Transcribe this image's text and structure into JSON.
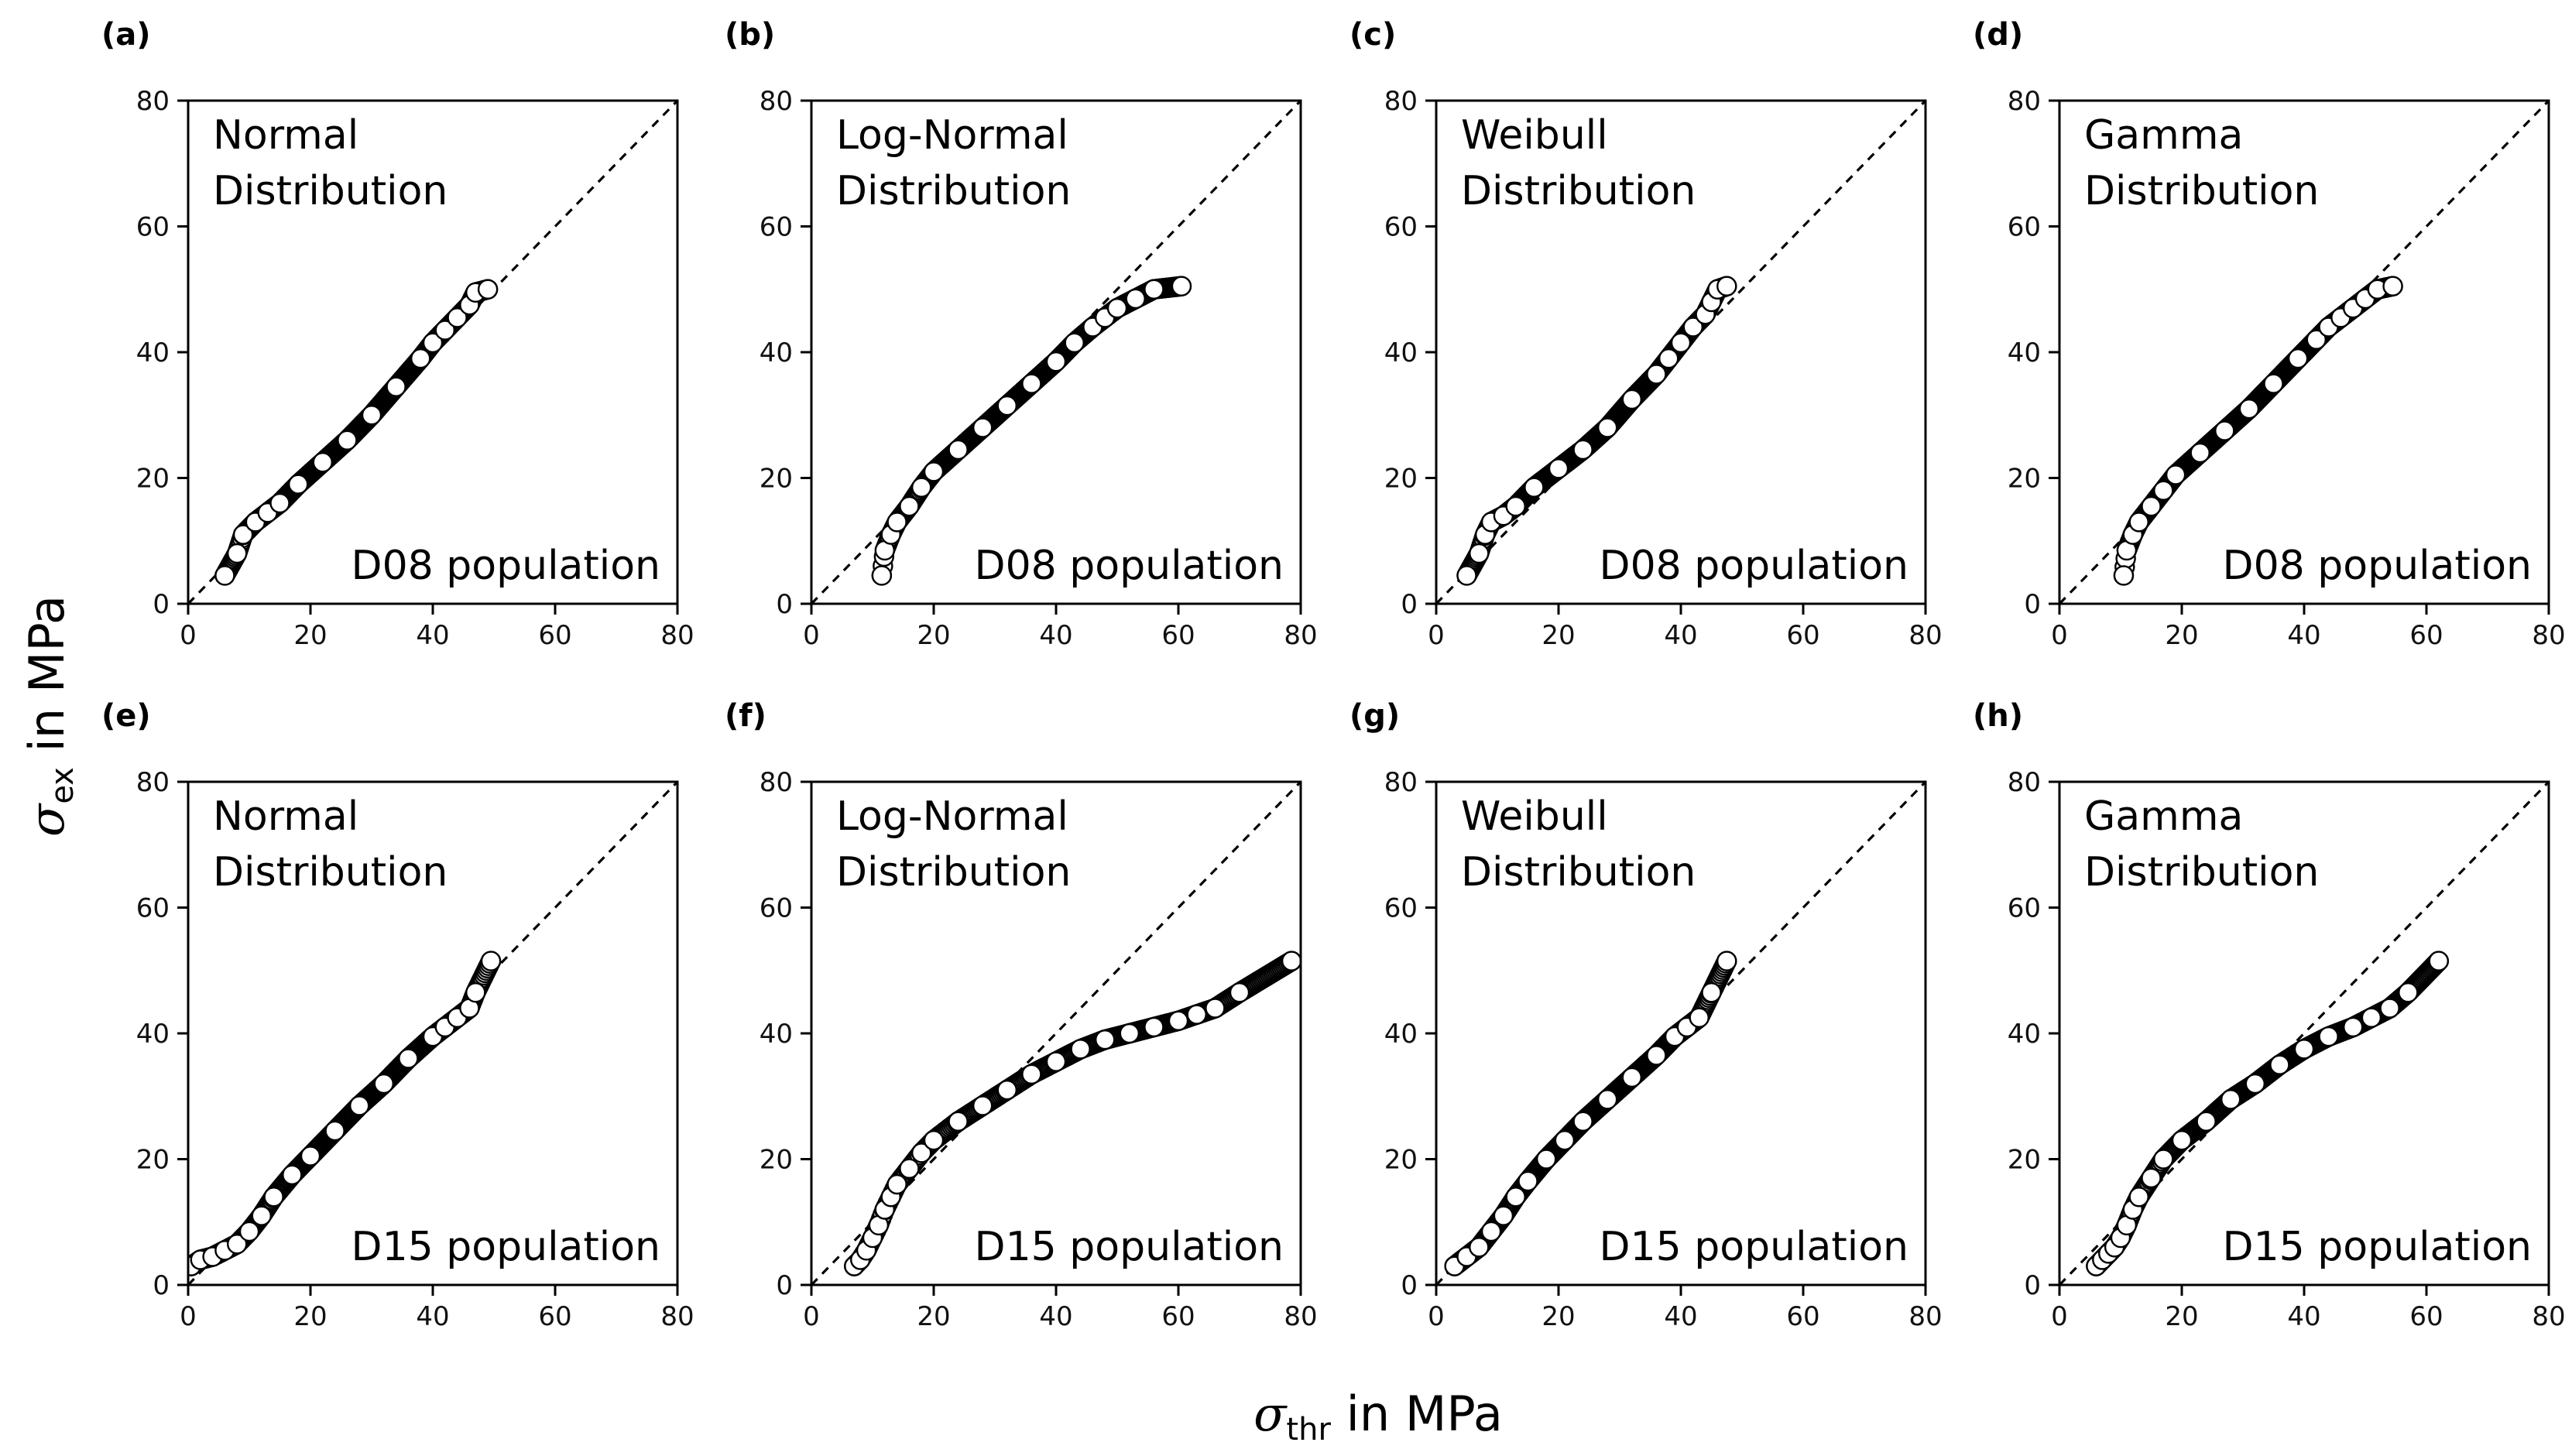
{
  "figure": {
    "xlabel": {
      "symbol": "σ",
      "sub": "thr",
      "rest": " in MPa"
    },
    "ylabel": {
      "symbol": "σ",
      "sub": "ex",
      "rest": " in MPa"
    }
  },
  "chart_data": [
    {
      "type": "scatter",
      "panel": "(a)",
      "distribution_line1": "Normal",
      "distribution_line2": "Distribution",
      "population": "D08 population",
      "xlim": [
        0,
        80
      ],
      "ylim": [
        0,
        80
      ],
      "xticks": [
        0,
        20,
        40,
        60,
        80
      ],
      "yticks": [
        0,
        20,
        40,
        60,
        80
      ],
      "reference": "y = x (dashed)",
      "curve_x": [
        6,
        8,
        9,
        11,
        13,
        15,
        18,
        22,
        26,
        30,
        34,
        38,
        40,
        42,
        44,
        46,
        47,
        49
      ],
      "curve_y": [
        4.5,
        8,
        11,
        13,
        14.5,
        16,
        19,
        22.5,
        26,
        30,
        34.5,
        39,
        41.5,
        43.5,
        45.5,
        47.5,
        49.5,
        50
      ]
    },
    {
      "type": "scatter",
      "panel": "(b)",
      "distribution_line1": "Log-Normal",
      "distribution_line2": "Distribution",
      "population": "D08 population",
      "xlim": [
        0,
        80
      ],
      "ylim": [
        0,
        80
      ],
      "xticks": [
        0,
        20,
        40,
        60,
        80
      ],
      "yticks": [
        0,
        20,
        40,
        60,
        80
      ],
      "reference": "y = x (dashed)",
      "curve_x": [
        11.5,
        12,
        13,
        14,
        16,
        18,
        20,
        24,
        28,
        32,
        36,
        40,
        43,
        46,
        48,
        50,
        53,
        56,
        60.5
      ],
      "curve_y": [
        4.5,
        8.5,
        11,
        13,
        15.5,
        18.5,
        21,
        24.5,
        28,
        31.5,
        35,
        38.5,
        41.5,
        44,
        45.5,
        47,
        48.5,
        50,
        50.5
      ]
    },
    {
      "type": "scatter",
      "panel": "(c)",
      "distribution_line1": "Weibull",
      "distribution_line2": "Distribution",
      "population": "D08 population",
      "xlim": [
        0,
        80
      ],
      "ylim": [
        0,
        80
      ],
      "xticks": [
        0,
        20,
        40,
        60,
        80
      ],
      "yticks": [
        0,
        20,
        40,
        60,
        80
      ],
      "reference": "y = x (dashed)",
      "curve_x": [
        5,
        7,
        8,
        9,
        11,
        13,
        16,
        20,
        24,
        28,
        32,
        36,
        38,
        40,
        42,
        44,
        45,
        46,
        47.5
      ],
      "curve_y": [
        4.5,
        8,
        11,
        13,
        14,
        15.5,
        18.5,
        21.5,
        24.5,
        28,
        32.5,
        36.5,
        39,
        41.5,
        44,
        46,
        48,
        50,
        50.5
      ]
    },
    {
      "type": "scatter",
      "panel": "(d)",
      "distribution_line1": "Gamma",
      "distribution_line2": "Distribution",
      "population": "D08 population",
      "xlim": [
        0,
        80
      ],
      "ylim": [
        0,
        80
      ],
      "xticks": [
        0,
        20,
        40,
        60,
        80
      ],
      "yticks": [
        0,
        20,
        40,
        60,
        80
      ],
      "reference": "y = x (dashed)",
      "curve_x": [
        10.5,
        11,
        12,
        13,
        15,
        17,
        19,
        23,
        27,
        31,
        35,
        39,
        42,
        44,
        46,
        48,
        50,
        52,
        54.5
      ],
      "curve_y": [
        4.5,
        8.5,
        11,
        13,
        15.5,
        18,
        20.5,
        24,
        27.5,
        31,
        35,
        39,
        42,
        44,
        45.5,
        47,
        48.5,
        50,
        50.5
      ]
    },
    {
      "type": "scatter",
      "panel": "(e)",
      "distribution_line1": "Normal",
      "distribution_line2": "Distribution",
      "population": "D15 population",
      "xlim": [
        0,
        80
      ],
      "ylim": [
        0,
        80
      ],
      "xticks": [
        0,
        20,
        40,
        60,
        80
      ],
      "yticks": [
        0,
        20,
        40,
        60,
        80
      ],
      "reference": "y = x (dashed)",
      "curve_x": [
        0.5,
        2,
        4,
        6,
        8,
        10,
        12,
        14,
        17,
        20,
        24,
        28,
        32,
        36,
        40,
        42,
        44,
        46,
        47,
        49.5
      ],
      "curve_y": [
        3,
        4,
        4.5,
        5.5,
        6.5,
        8.5,
        11,
        14,
        17.5,
        20.5,
        24.5,
        28.5,
        32,
        36,
        39.5,
        41,
        42.5,
        44,
        46.5,
        51.5
      ]
    },
    {
      "type": "scatter",
      "panel": "(f)",
      "distribution_line1": "Log-Normal",
      "distribution_line2": "Distribution",
      "population": "D15 population",
      "xlim": [
        0,
        80
      ],
      "ylim": [
        0,
        80
      ],
      "xticks": [
        0,
        20,
        40,
        60,
        80
      ],
      "yticks": [
        0,
        20,
        40,
        60,
        80
      ],
      "reference": "y = x (dashed)",
      "curve_x": [
        7,
        8,
        9,
        10,
        11,
        12,
        13,
        14,
        16,
        18,
        20,
        24,
        28,
        32,
        36,
        40,
        44,
        48,
        52,
        56,
        60,
        63,
        66,
        70,
        78.5
      ],
      "curve_y": [
        3,
        4,
        5.5,
        7.5,
        9.5,
        12,
        14,
        16,
        18.5,
        21,
        23,
        26,
        28.5,
        31,
        33.5,
        35.5,
        37.5,
        39,
        40,
        41,
        42,
        43,
        44,
        46.5,
        51.5
      ]
    },
    {
      "type": "scatter",
      "panel": "(g)",
      "distribution_line1": "Weibull",
      "distribution_line2": "Distribution",
      "population": "D15 population",
      "xlim": [
        0,
        80
      ],
      "ylim": [
        0,
        80
      ],
      "xticks": [
        0,
        20,
        40,
        60,
        80
      ],
      "yticks": [
        0,
        20,
        40,
        60,
        80
      ],
      "reference": "y = x (dashed)",
      "curve_x": [
        3,
        5,
        7,
        9,
        11,
        13,
        15,
        18,
        21,
        24,
        28,
        32,
        36,
        39,
        41,
        43,
        45,
        47.5
      ],
      "curve_y": [
        3,
        4.5,
        6,
        8.5,
        11,
        14,
        16.5,
        20,
        23,
        26,
        29.5,
        33,
        36.5,
        39.5,
        41,
        42.5,
        46.5,
        51.5
      ]
    },
    {
      "type": "scatter",
      "panel": "(h)",
      "distribution_line1": "Gamma",
      "distribution_line2": "Distribution",
      "population": "D15 population",
      "xlim": [
        0,
        80
      ],
      "ylim": [
        0,
        80
      ],
      "xticks": [
        0,
        20,
        40,
        60,
        80
      ],
      "yticks": [
        0,
        20,
        40,
        60,
        80
      ],
      "reference": "y = x (dashed)",
      "curve_x": [
        6,
        7,
        8,
        9,
        10,
        11,
        12,
        13,
        15,
        17,
        20,
        24,
        28,
        32,
        36,
        40,
        44,
        48,
        51,
        54,
        57,
        62
      ],
      "curve_y": [
        3,
        4,
        5,
        6,
        7.5,
        9.5,
        12,
        14,
        17,
        20,
        23,
        26,
        29.5,
        32,
        35,
        37.5,
        39.5,
        41,
        42.5,
        44,
        46.5,
        51.5
      ]
    }
  ]
}
